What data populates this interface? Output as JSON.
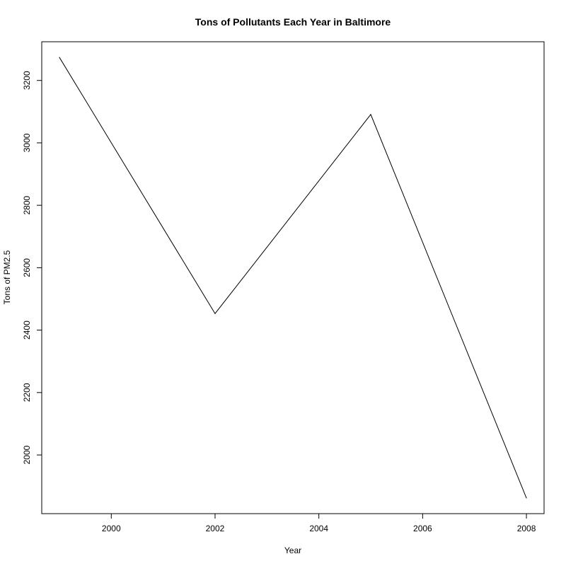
{
  "chart_data": {
    "type": "line",
    "title": "Tons of Pollutants Each Year in Baltimore",
    "xlabel": "Year",
    "ylabel": "Tons of PM2.5",
    "x": [
      1999,
      2002,
      2005,
      2008
    ],
    "series": [
      {
        "values": [
          3274,
          2453,
          3091,
          1862
        ]
      }
    ],
    "xlim": [
      1998.66,
      2008.34
    ],
    "ylim": [
      1812,
      3324
    ],
    "x_ticks": [
      "2000",
      "2002",
      "2004",
      "2006",
      "2008"
    ],
    "y_ticks": [
      "2000",
      "2200",
      "2400",
      "2600",
      "2800",
      "3000",
      "3200"
    ],
    "line_color": "#000000",
    "grid": false,
    "legend": "none"
  }
}
